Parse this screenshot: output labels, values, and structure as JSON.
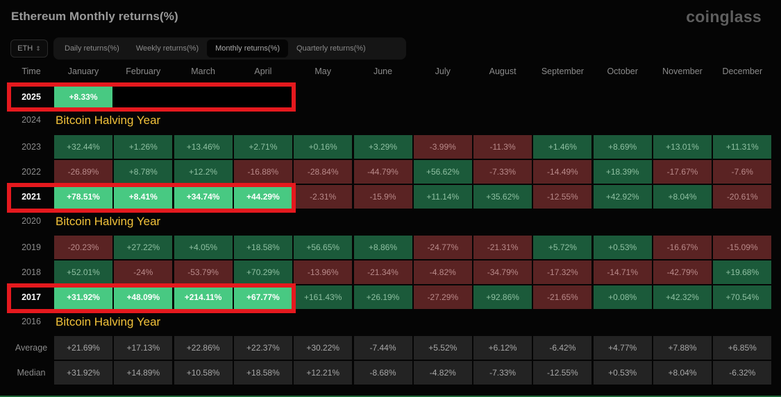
{
  "header": {
    "title": "Ethereum Monthly returns(%)",
    "logo": "coinglass"
  },
  "asset_select": {
    "value": "ETH"
  },
  "tabs": [
    {
      "label": "Daily returns(%)",
      "active": false
    },
    {
      "label": "Weekly returns(%)",
      "active": false
    },
    {
      "label": "Monthly returns(%)",
      "active": true
    },
    {
      "label": "Quarterly returns(%)",
      "active": false
    }
  ],
  "columns": [
    "Time",
    "January",
    "February",
    "March",
    "April",
    "May",
    "June",
    "July",
    "August",
    "September",
    "October",
    "November",
    "December"
  ],
  "halving_label": "Bitcoin Halving Year",
  "rows": [
    {
      "label": "2025",
      "highlight": true,
      "cells": [
        "+8.33%"
      ]
    },
    {
      "label": "2024",
      "halving": true,
      "cells": []
    },
    {
      "label": "2023",
      "cells": [
        "+32.44%",
        "+1.26%",
        "+13.46%",
        "+2.71%",
        "+0.16%",
        "+3.29%",
        "-3.99%",
        "-11.3%",
        "+1.46%",
        "+8.69%",
        "+13.01%",
        "+11.31%"
      ]
    },
    {
      "label": "2022",
      "cells": [
        "-26.89%",
        "+8.78%",
        "+12.2%",
        "-16.88%",
        "-28.84%",
        "-44.79%",
        "+56.62%",
        "-7.33%",
        "-14.49%",
        "+18.39%",
        "-17.67%",
        "-7.6%"
      ]
    },
    {
      "label": "2021",
      "highlight": true,
      "cells": [
        "+78.51%",
        "+8.41%",
        "+34.74%",
        "+44.29%",
        "-2.31%",
        "-15.9%",
        "+11.14%",
        "+35.62%",
        "-12.55%",
        "+42.92%",
        "+8.04%",
        "-20.61%"
      ]
    },
    {
      "label": "2020",
      "halving": true,
      "cells": []
    },
    {
      "label": "2019",
      "cells": [
        "-20.23%",
        "+27.22%",
        "+4.05%",
        "+18.58%",
        "+56.65%",
        "+8.86%",
        "-24.77%",
        "-21.31%",
        "+5.72%",
        "+0.53%",
        "-16.67%",
        "-15.09%"
      ]
    },
    {
      "label": "2018",
      "cells": [
        "+52.01%",
        "-24%",
        "-53.79%",
        "+70.29%",
        "-13.96%",
        "-21.34%",
        "-4.82%",
        "-34.79%",
        "-17.32%",
        "-14.71%",
        "-42.79%",
        "+19.68%"
      ]
    },
    {
      "label": "2017",
      "highlight": true,
      "cells": [
        "+31.92%",
        "+48.09%",
        "+214.11%",
        "+67.77%",
        "+161.43%",
        "+26.19%",
        "-27.29%",
        "+92.86%",
        "-21.65%",
        "+0.08%",
        "+42.32%",
        "+70.54%"
      ]
    },
    {
      "label": "2016",
      "halving": true,
      "cells": []
    },
    {
      "label": "Average",
      "stat": true,
      "cells": [
        "+21.69%",
        "+17.13%",
        "+22.86%",
        "+22.37%",
        "+30.22%",
        "-7.44%",
        "+5.52%",
        "+6.12%",
        "-6.42%",
        "+4.77%",
        "+7.88%",
        "+6.85%"
      ]
    },
    {
      "label": "Median",
      "stat": true,
      "cells": [
        "+31.92%",
        "+14.89%",
        "+10.58%",
        "+18.58%",
        "+12.21%",
        "-8.68%",
        "-4.82%",
        "-7.33%",
        "-12.55%",
        "+0.53%",
        "+8.04%",
        "-6.32%"
      ]
    }
  ],
  "colors": {
    "positive": "#1b5a3a",
    "negative": "#5a2323",
    "highlight_positive": "#48c982",
    "halving_text": "#f2c23a",
    "annotation_box": "#e5191e"
  }
}
